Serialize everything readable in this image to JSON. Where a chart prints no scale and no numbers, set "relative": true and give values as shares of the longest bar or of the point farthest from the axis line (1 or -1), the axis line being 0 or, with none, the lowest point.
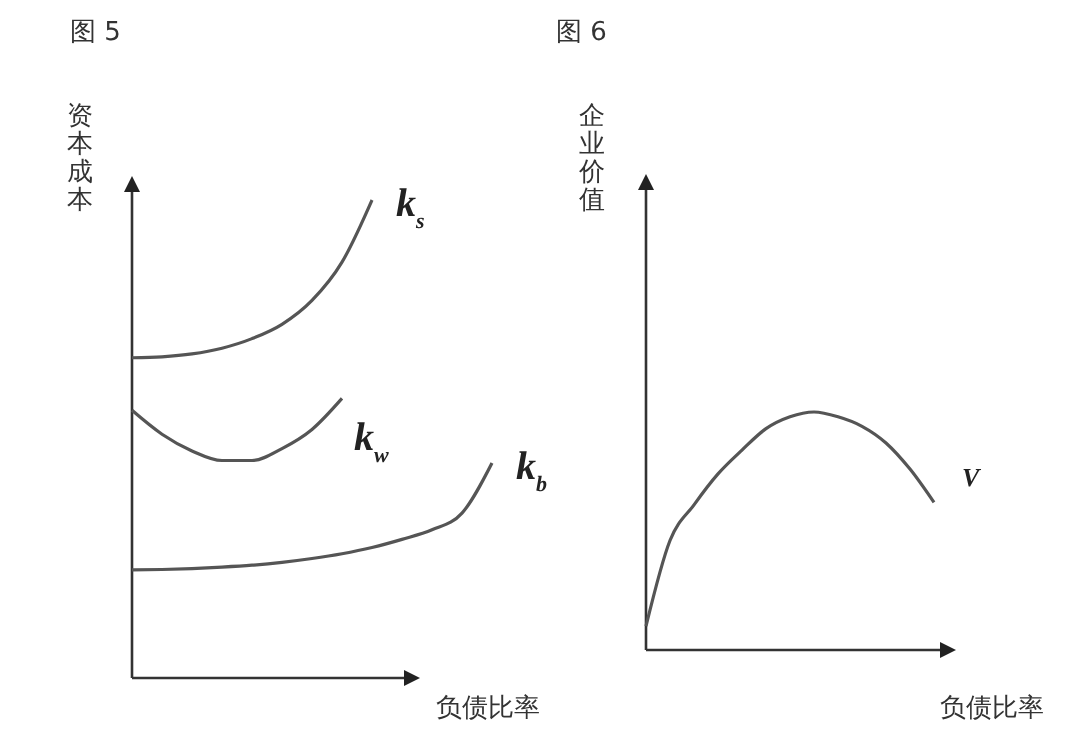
{
  "chart_data": [
    {
      "type": "line",
      "title": "图 5",
      "xlabel": "负债比率",
      "ylabel": "资本成本",
      "relative": true,
      "categories": [
        null,
        null,
        null,
        null,
        null,
        null,
        null,
        null,
        null,
        null,
        null,
        null,
        null
      ],
      "series": [
        {
          "name": "k$_{s}$",
          "color": "#555555",
          "values": [
            0.67,
            0.672,
            0.678,
            0.69,
            0.71,
            0.74,
            0.79,
            0.87,
            1,
            null,
            null,
            null,
            null
          ]
        },
        {
          "name": "k$_{w}$",
          "color": "#555555",
          "values": [
            0.56,
            0.51,
            0.475,
            0.455,
            0.455,
            0.48,
            0.52,
            0.585,
            null,
            null,
            null,
            null,
            null
          ]
        },
        {
          "name": "k$_{b}$",
          "color": "#555555",
          "values": [
            0.226,
            0.227,
            0.229,
            0.232,
            0.236,
            0.242,
            0.25,
            0.26,
            0.273,
            0.29,
            0.31,
            0.345,
            0.45
          ]
        }
      ]
    },
    {
      "type": "line",
      "title": "图 6",
      "xlabel": "负债比率",
      "ylabel": "企业价值",
      "relative": true,
      "categories": [
        null,
        null,
        null,
        null,
        null,
        null,
        null,
        null,
        null,
        null,
        null,
        null,
        null
      ],
      "series": [
        {
          "name": "V",
          "color": "#555555",
          "values": [
            0.1,
            0.46,
            0.61,
            0.74,
            0.84,
            0.93,
            0.98,
            1,
            0.98,
            0.94,
            0.87,
            0.76,
            0.62
          ]
        }
      ]
    }
  ]
}
